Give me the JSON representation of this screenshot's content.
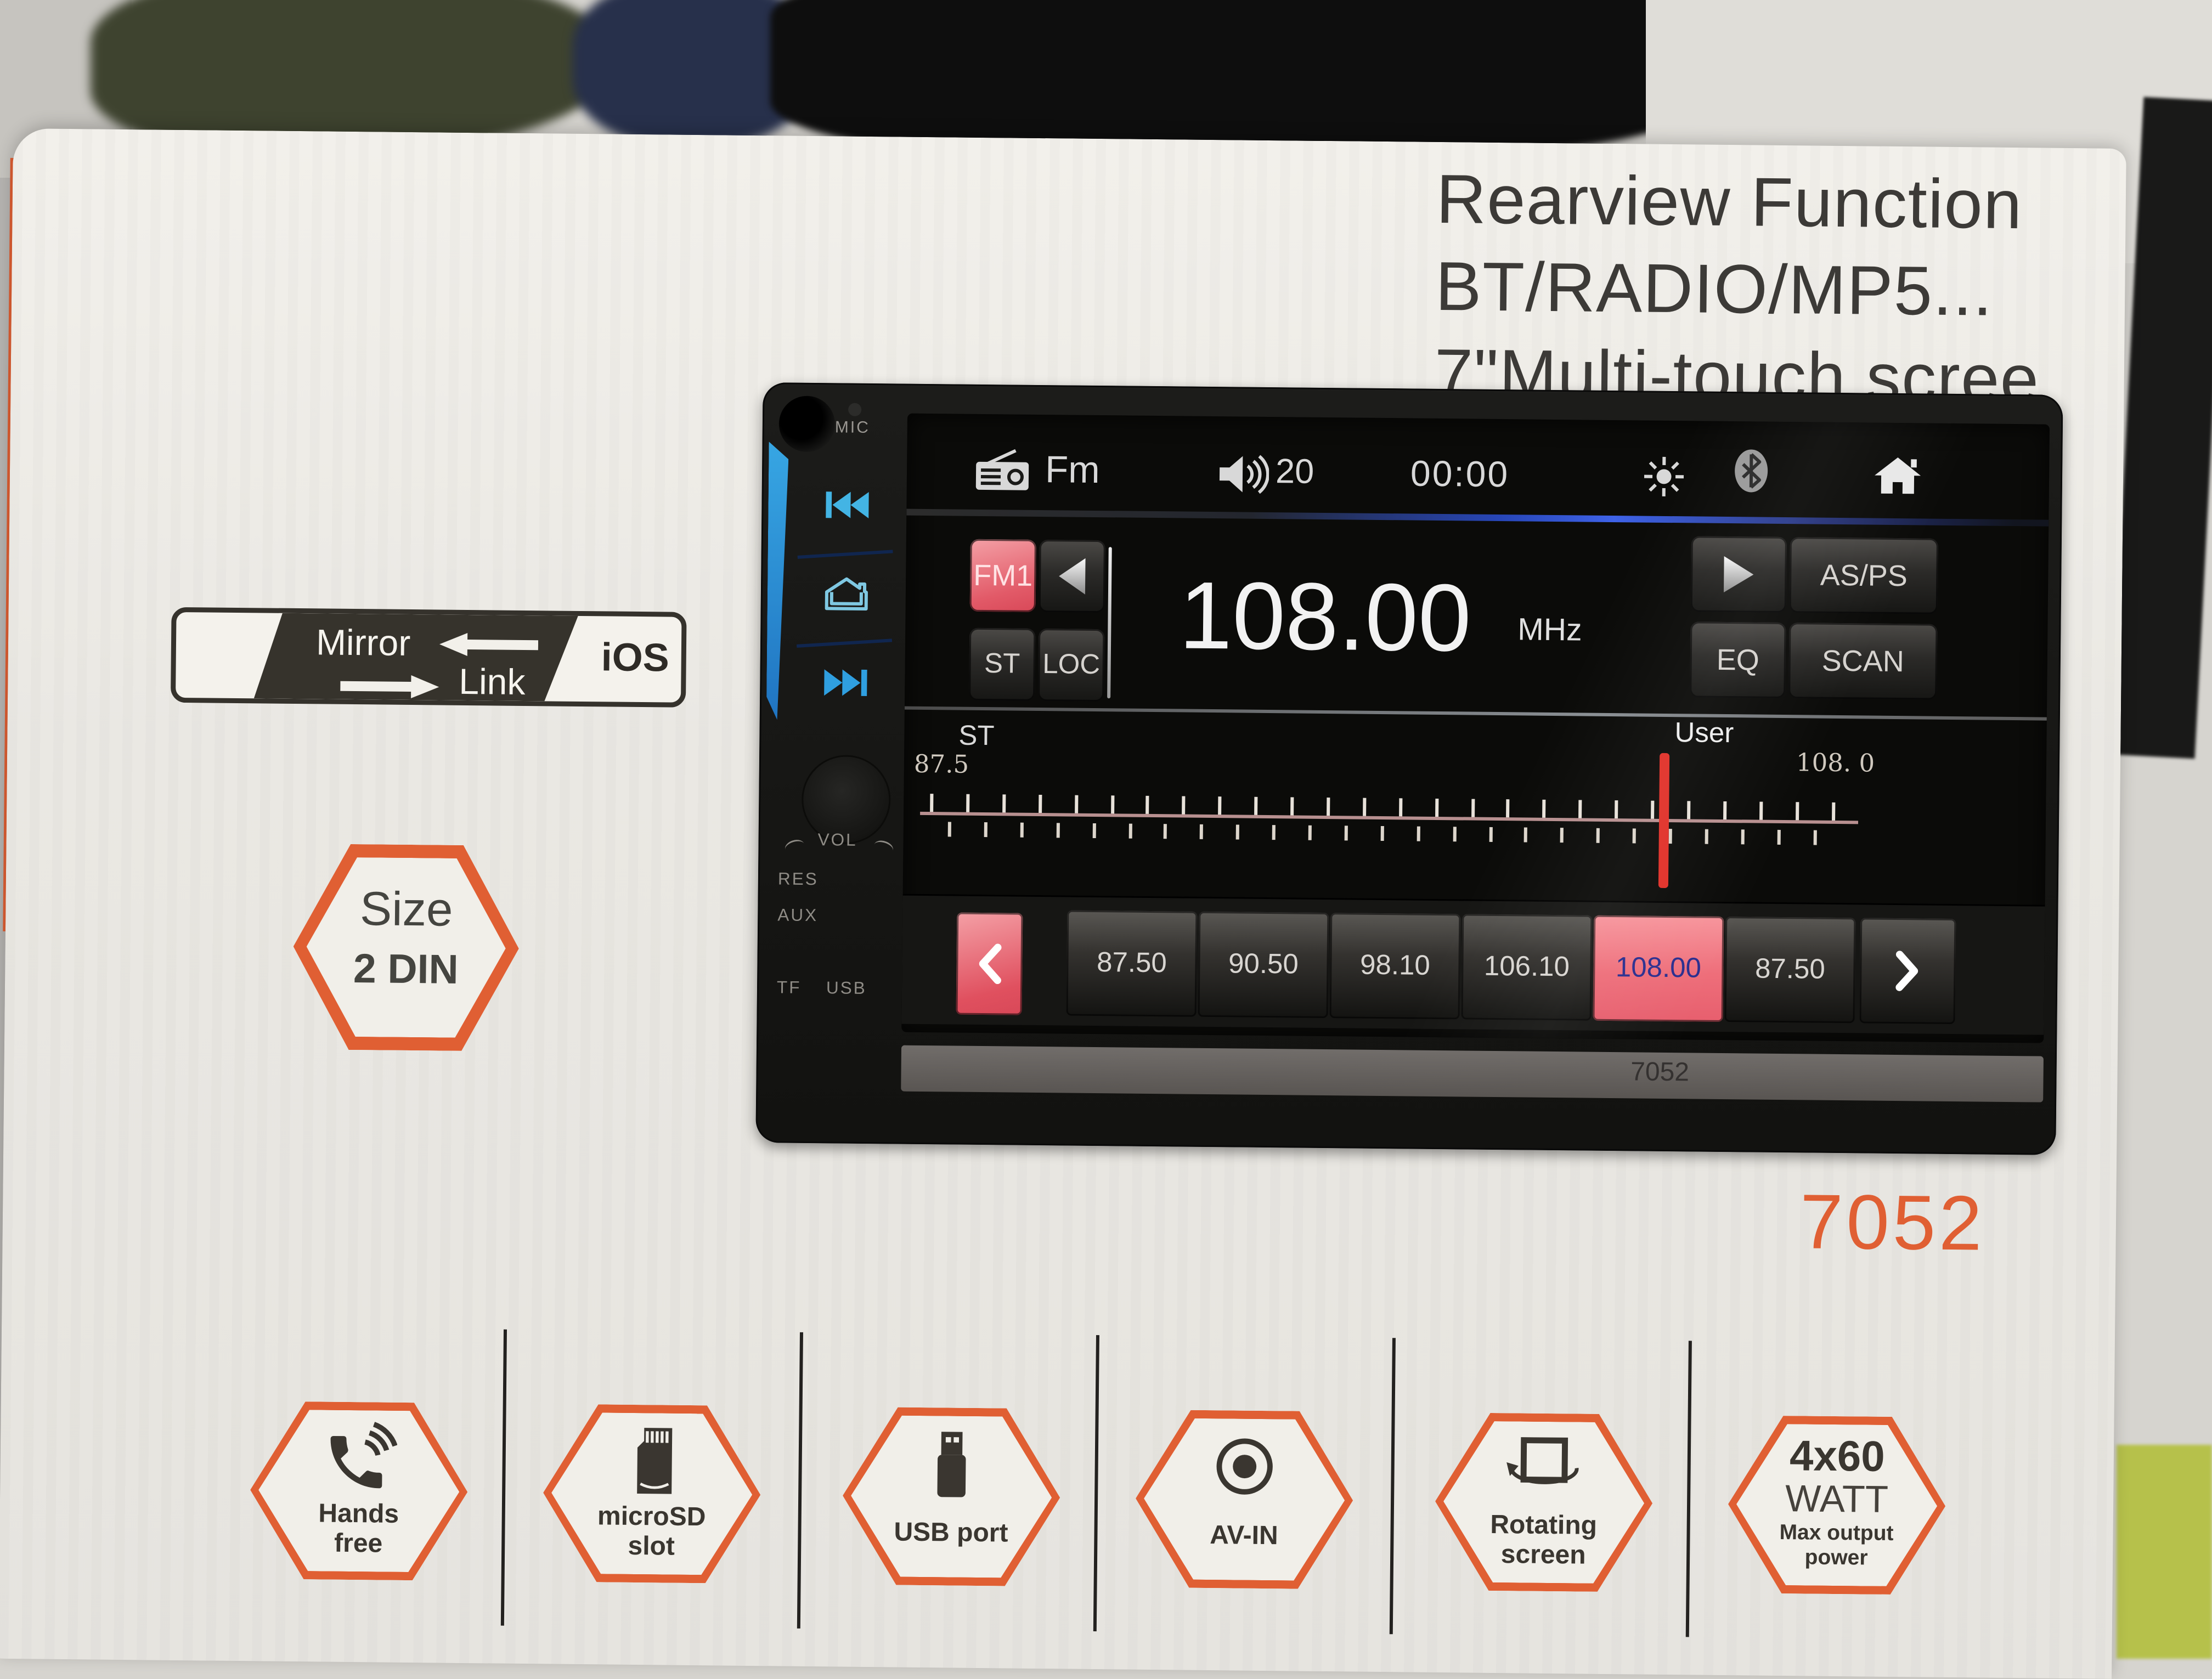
{
  "box": {
    "title_lines": [
      "Rearview Function",
      "BT/RADIO/MP5...",
      "7\"Multi-touch scree"
    ],
    "model_number": "7052"
  },
  "badges": {
    "mirror_link": {
      "word1": "Mirror",
      "word2": "Link",
      "platform": "iOS"
    },
    "size": {
      "label": "Size",
      "value": "2 DIN"
    }
  },
  "device": {
    "panel_labels": {
      "mic": "MIC",
      "vol": "VOL",
      "res": "RES",
      "aux": "AUX",
      "tf": "TF",
      "usb": "USB"
    },
    "chin_model": "7052",
    "screen": {
      "topbar": {
        "source": "Fm",
        "volume": "20",
        "clock": "00:00"
      },
      "radio": {
        "band": "FM1",
        "st": "ST",
        "loc": "LOC",
        "frequency": "108.00",
        "unit": "MHz",
        "asps": "AS/PS",
        "eq": "EQ",
        "scan": "SCAN"
      },
      "scale": {
        "stereo_label": "ST",
        "mode_label": "User",
        "min": "87.5",
        "max": "108. 0",
        "major_tick_count": 26,
        "minor_tick_count": 25
      },
      "presets": [
        "87.50",
        "90.50",
        "98.10",
        "106.10",
        "108.00",
        "87.50"
      ],
      "presets_active_index": 4
    }
  },
  "features": [
    {
      "icon": "handsfree-icon",
      "lines": [
        "Hands",
        "free"
      ]
    },
    {
      "icon": "microsd-icon",
      "lines": [
        "microSD",
        "slot"
      ]
    },
    {
      "icon": "usb-icon",
      "lines": [
        "USB port"
      ]
    },
    {
      "icon": "avin-icon",
      "lines": [
        "AV-IN"
      ]
    },
    {
      "icon": "rotating-screen-icon",
      "lines": [
        "Rotating",
        "screen"
      ]
    },
    {
      "icon": "watt-icon",
      "lines": [
        "4x60",
        "WATT",
        "Max output",
        "power"
      ]
    }
  ],
  "colors": {
    "orange": "#e05f33",
    "red_button": "#e25a68",
    "active_preset": "#ef7582",
    "preset_active_text": "#2b2e8e",
    "cyan": "#43b4e4",
    "screen_bg": "#0b0b09",
    "box_bg": "#edebe6"
  }
}
